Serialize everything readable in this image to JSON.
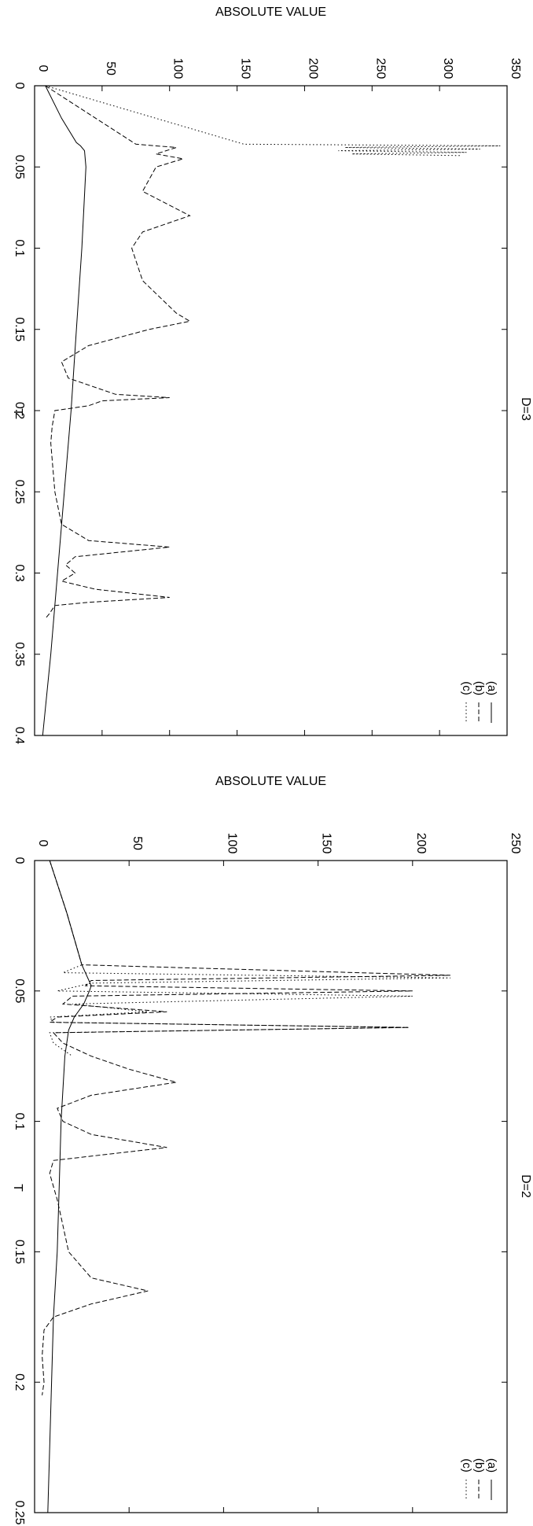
{
  "chart_data": [
    {
      "type": "line",
      "title": "D=3",
      "xlabel": "T",
      "ylabel": "ABSOLUTE VALUE",
      "xlim": [
        0,
        0.4
      ],
      "ylim": [
        0,
        350
      ],
      "x_ticks": [
        "0",
        "0.05",
        "0.1",
        "0.15",
        "0.2",
        "0.25",
        "0.3",
        "0.35",
        "0.4"
      ],
      "y_ticks": [
        "0",
        "50",
        "100",
        "150",
        "200",
        "250",
        "300",
        "350"
      ],
      "grid": false,
      "legend_position": "bottom-right",
      "series": [
        {
          "name": "(a)",
          "style": "solid",
          "x": [
            0,
            0.02,
            0.035,
            0.037,
            0.04,
            0.05,
            0.1,
            0.15,
            0.2,
            0.25,
            0.3,
            0.35,
            0.4
          ],
          "y": [
            8,
            20,
            31,
            34,
            37,
            38,
            35,
            31,
            27,
            22,
            17,
            12,
            6
          ]
        },
        {
          "name": "(b)",
          "style": "dashed",
          "x": [
            0,
            0.036,
            0.038,
            0.042,
            0.045,
            0.05,
            0.065,
            0.08,
            0.09,
            0.1,
            0.12,
            0.14,
            0.145,
            0.15,
            0.16,
            0.17,
            0.18,
            0.19,
            0.192,
            0.194,
            0.197,
            0.2,
            0.21,
            0.22,
            0.25,
            0.27,
            0.28,
            0.284,
            0.29,
            0.295,
            0.3,
            0.305,
            0.31,
            0.315,
            0.318,
            0.32,
            0.325,
            0.328
          ],
          "y": [
            8,
            75,
            105,
            90,
            110,
            90,
            80,
            115,
            80,
            72,
            80,
            105,
            115,
            85,
            40,
            20,
            25,
            60,
            100,
            50,
            40,
            15,
            13,
            12,
            15,
            20,
            40,
            100,
            30,
            23,
            30,
            20,
            45,
            100,
            40,
            15,
            11,
            8
          ]
        },
        {
          "name": "(c)",
          "style": "dotted",
          "x": [
            0,
            0.036,
            0.037,
            0.038,
            0.039,
            0.04,
            0.041,
            0.042,
            0.043
          ],
          "y": [
            8,
            155,
            345,
            230,
            330,
            225,
            320,
            235,
            315
          ]
        }
      ]
    },
    {
      "type": "line",
      "title": "D=2",
      "xlabel": "T",
      "ylabel": "ABSOLUTE VALUE",
      "xlim": [
        0,
        0.25
      ],
      "ylim": [
        0,
        250
      ],
      "x_ticks": [
        "0",
        "0.05",
        "0.1",
        "0.15",
        "0.2",
        "0.25"
      ],
      "y_ticks": [
        "0",
        "50",
        "100",
        "150",
        "200",
        "250"
      ],
      "grid": false,
      "legend_position": "bottom-right",
      "series": [
        {
          "name": "(a)",
          "style": "solid",
          "x": [
            0,
            0.02,
            0.04,
            0.048,
            0.05,
            0.055,
            0.06,
            0.065,
            0.075,
            0.1,
            0.125,
            0.15,
            0.175,
            0.2,
            0.25
          ],
          "y": [
            8,
            17,
            25,
            30,
            29,
            26,
            21,
            18,
            16,
            14,
            13,
            12,
            10,
            9,
            7
          ]
        },
        {
          "name": "(b)",
          "style": "dashed",
          "x": [
            0,
            0.02,
            0.04,
            0.044,
            0.046,
            0.048,
            0.05,
            0.052,
            0.055,
            0.058,
            0.06,
            0.062,
            0.064,
            0.066,
            0.07,
            0.075,
            0.08,
            0.085,
            0.09,
            0.095,
            0.1,
            0.105,
            0.11,
            0.115,
            0.12,
            0.13,
            0.14,
            0.15,
            0.16,
            0.165,
            0.17,
            0.175,
            0.18,
            0.19,
            0.2,
            0.205
          ],
          "y": [
            8,
            17,
            25,
            220,
            30,
            27,
            200,
            20,
            15,
            70,
            12,
            8,
            198,
            10,
            15,
            30,
            50,
            75,
            30,
            12,
            15,
            30,
            70,
            10,
            8,
            12,
            15,
            18,
            30,
            60,
            30,
            10,
            5,
            4,
            5,
            4
          ]
        },
        {
          "name": "(c)",
          "style": "dotted",
          "x": [
            0,
            0.02,
            0.04,
            0.043,
            0.045,
            0.047,
            0.05,
            0.052,
            0.055,
            0.058,
            0.06,
            0.062,
            0.064,
            0.066,
            0.07,
            0.075
          ],
          "y": [
            8,
            17,
            25,
            15,
            220,
            30,
            12,
            200,
            20,
            60,
            8,
            10,
            198,
            8,
            10,
            20
          ]
        }
      ]
    }
  ]
}
